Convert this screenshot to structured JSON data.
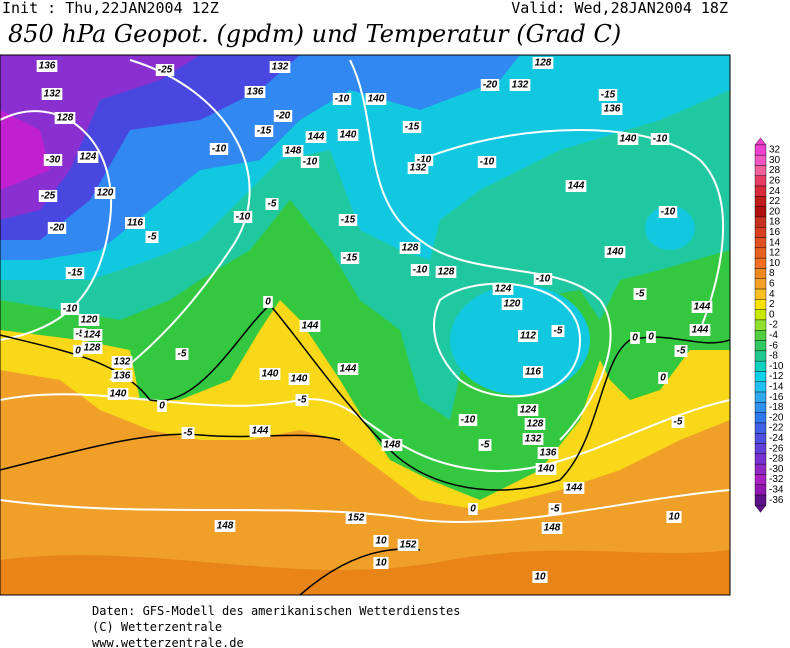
{
  "header": {
    "init": "Init : Thu,22JAN2004 12Z",
    "valid": "Valid: Wed,28JAN2004 18Z",
    "title": "850 hPa Geopot. (gpdm) und Temperatur (Grad C)"
  },
  "colorbar": {
    "values": [
      32,
      30,
      28,
      26,
      24,
      22,
      20,
      18,
      16,
      14,
      12,
      10,
      8,
      6,
      4,
      2,
      0,
      -2,
      -4,
      -6,
      -8,
      -10,
      -12,
      -14,
      -16,
      -18,
      -20,
      -22,
      -24,
      -26,
      -28,
      -30,
      -32,
      -34,
      -36
    ],
    "colors": [
      "#f040d0",
      "#f058c0",
      "#f0609c",
      "#e83c64",
      "#d82c3c",
      "#c01c1c",
      "#b01010",
      "#c83020",
      "#d84020",
      "#e05020",
      "#e86020",
      "#f07020",
      "#f08820",
      "#f4a028",
      "#f8c020",
      "#f8e000",
      "#c8e800",
      "#90e030",
      "#50d040",
      "#30c860",
      "#20c890",
      "#10d0c0",
      "#10d0e8",
      "#20c0f0",
      "#30a8f0",
      "#3090f0",
      "#3078f0",
      "#4060e8",
      "#5050e0",
      "#6040d8",
      "#7830d0",
      "#9028c8",
      "#a820c0",
      "#9018b0",
      "#601088"
    ]
  },
  "map_labels": [
    "136",
    "-25",
    "132",
    "136",
    "128",
    "-20",
    "132",
    "-15",
    "136",
    "132",
    "128",
    "-10",
    "140",
    "-20",
    "-15",
    "144",
    "140",
    "-15",
    "-10",
    "148",
    "-10",
    "-10",
    "-10",
    "140",
    "-10",
    "-30",
    "124",
    "132",
    "144",
    "-25",
    "120",
    "-5",
    "-10",
    "-15",
    "-10",
    "116",
    "-5",
    "-20",
    "128",
    "140",
    "-15",
    "-15",
    "-10",
    "128",
    "-10",
    "124",
    "-5",
    "120",
    "0",
    "-10",
    "120",
    "144",
    "144",
    "-5",
    "124",
    "112",
    "-5",
    "0",
    "0",
    "128",
    "144",
    "0",
    "-5",
    "-5",
    "132",
    "116",
    "144",
    "136",
    "140",
    "140",
    "0",
    "140",
    "-5",
    "0",
    "124",
    "-10",
    "128",
    "-5",
    "-5",
    "144",
    "132",
    "-5",
    "148",
    "136",
    "140",
    "144",
    "0",
    "-5",
    "148",
    "10",
    "148",
    "152",
    "10",
    "152",
    "10",
    "10"
  ],
  "footer": [
    "Daten: GFS-Modell des amerikanischen Wetterdienstes",
    "(C) Wetterzentrale",
    "www.wetterzentrale.de"
  ]
}
